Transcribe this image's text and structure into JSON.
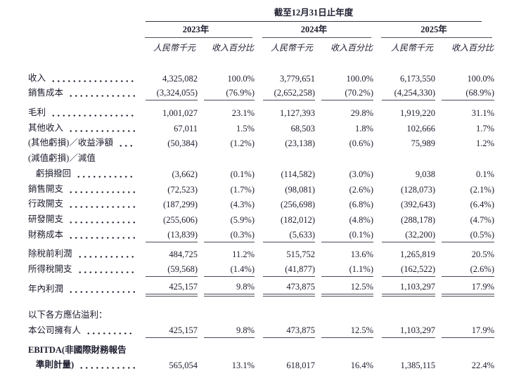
{
  "table": {
    "period_header": "截至12月31日止年度",
    "years": [
      "2023年",
      "2024年",
      "2025年"
    ],
    "column_headers": {
      "amount": "人民幣千元",
      "percent": "收入百分比"
    },
    "rows": [
      {
        "label": "收入",
        "leader": true,
        "underline": "none",
        "values": [
          "4,325,082",
          "100.0%",
          "3,779,651",
          "100.0%",
          "6,173,550",
          "100.0%"
        ]
      },
      {
        "label": "銷售成本",
        "leader": true,
        "underline": "single",
        "values": [
          "(3,324,055)",
          "(76.9%)",
          "(2,652,258)",
          "(70.2%)",
          "(4,254,330)",
          "(68.9%)"
        ]
      },
      {
        "label": "毛利",
        "leader": true,
        "underline": "none",
        "values": [
          "1,001,027",
          "23.1%",
          "1,127,393",
          "29.8%",
          "1,919,220",
          "31.1%"
        ]
      },
      {
        "label": "其他收入",
        "leader": true,
        "underline": "none",
        "values": [
          "67,011",
          "1.5%",
          "68,503",
          "1.8%",
          "102,666",
          "1.7%"
        ]
      },
      {
        "label": "(其他虧損)／收益淨額",
        "leader": true,
        "underline": "none",
        "values": [
          "(50,384)",
          "(1.2%)",
          "(23,138)",
          "(0.6%)",
          "75,989",
          "1.2%"
        ]
      },
      {
        "label": "(減值虧損)／減值",
        "leader": false,
        "underline": "none",
        "values": null
      },
      {
        "label": "虧損撥回",
        "indent": true,
        "leader": true,
        "underline": "none",
        "values": [
          "(3,662)",
          "(0.1%)",
          "(114,582)",
          "(3.0%)",
          "9,038",
          "0.1%"
        ]
      },
      {
        "label": "銷售開支",
        "leader": true,
        "underline": "none",
        "values": [
          "(72,523)",
          "(1.7%)",
          "(98,081)",
          "(2.6%)",
          "(128,073)",
          "(2.1%)"
        ]
      },
      {
        "label": "行政開支",
        "leader": true,
        "underline": "none",
        "values": [
          "(187,299)",
          "(4.3%)",
          "(256,698)",
          "(6.8%)",
          "(392,643)",
          "(6.4%)"
        ]
      },
      {
        "label": "研發開支",
        "leader": true,
        "underline": "none",
        "values": [
          "(255,606)",
          "(5.9%)",
          "(182,012)",
          "(4.8%)",
          "(288,178)",
          "(4.7%)"
        ]
      },
      {
        "label": "財務成本",
        "leader": true,
        "underline": "single",
        "values": [
          "(13,839)",
          "(0.3%)",
          "(5,633)",
          "(0.1%)",
          "(32,200)",
          "(0.5%)"
        ]
      },
      {
        "label": "除稅前利潤",
        "leader": true,
        "underline": "none",
        "values": [
          "484,725",
          "11.2%",
          "515,752",
          "13.6%",
          "1,265,819",
          "20.5%"
        ]
      },
      {
        "label": "所得稅開支",
        "leader": true,
        "underline": "single",
        "values": [
          "(59,568)",
          "(1.4%)",
          "(41,877)",
          "(1.1%)",
          "(162,522)",
          "(2.6%)"
        ]
      },
      {
        "label": "年內利潤",
        "leader": true,
        "underline": "double",
        "values": [
          "425,157",
          "9.8%",
          "473,875",
          "12.5%",
          "1,103,297",
          "17.9%"
        ]
      },
      {
        "label": "以下各方應佔溢利：",
        "leader": false,
        "underline": "none",
        "values": null
      },
      {
        "label": "本公司擁有人",
        "leader": true,
        "underline": "single",
        "values": [
          "425,157",
          "9.8%",
          "473,875",
          "12.5%",
          "1,103,297",
          "17.9%"
        ]
      },
      {
        "label": "EBITDA(非國際財務報告",
        "bold": true,
        "leader": false,
        "underline": "none",
        "values": null
      },
      {
        "label": "準則計量)",
        "bold": true,
        "indent": true,
        "leader": true,
        "underline": "none",
        "values": [
          "565,054",
          "13.1%",
          "618,017",
          "16.4%",
          "1,385,115",
          "22.4%"
        ]
      }
    ]
  }
}
